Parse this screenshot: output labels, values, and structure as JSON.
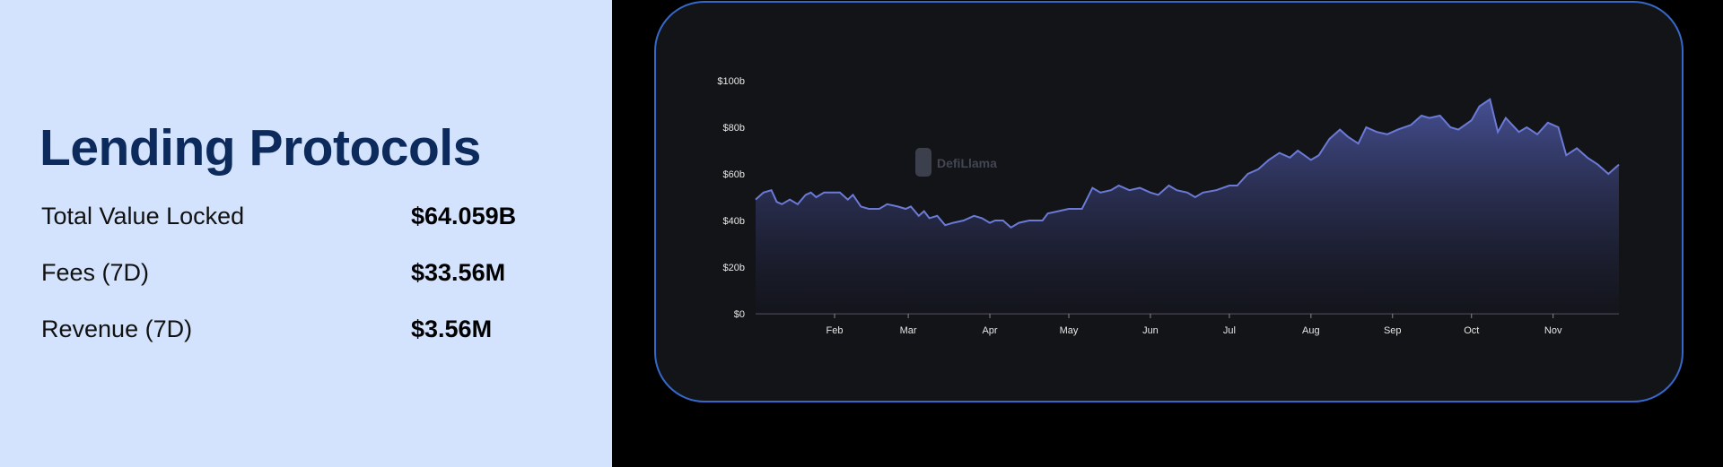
{
  "panel": {
    "title": "Lending Protocols",
    "rows": [
      {
        "label": "Total Value Locked",
        "value": "$64.059B"
      },
      {
        "label": "Fees (7D)",
        "value": "$33.56M"
      },
      {
        "label": "Revenue (7D)",
        "value": "$3.56M"
      }
    ]
  },
  "colors": {
    "panel_bg": "#d3e3fd",
    "title": "#0d2a5c",
    "card_border": "#3569c9",
    "card_bg": "#131417",
    "line": "#6b7ad6"
  },
  "chart_data": {
    "type": "area",
    "title": "",
    "xlabel": "",
    "ylabel": "",
    "watermark": "DefiLlama",
    "ylim": [
      0,
      100
    ],
    "y_ticks": [
      "$0",
      "$20b",
      "$40b",
      "$60b",
      "$80b",
      "$100b"
    ],
    "y_tick_values": [
      0,
      20,
      40,
      60,
      80,
      100
    ],
    "x_ticks": [
      "Feb",
      "Mar",
      "Apr",
      "May",
      "Jun",
      "Jul",
      "Aug",
      "Sep",
      "Oct",
      "Nov"
    ],
    "x_tick_dates": [
      "02-01",
      "03-01",
      "04-01",
      "05-01",
      "06-01",
      "07-01",
      "08-01",
      "09-01",
      "10-01",
      "11-01"
    ],
    "x_range": [
      "01-02",
      "11-26"
    ],
    "grid": false,
    "unit": "billion USD",
    "points": [
      [
        "01-02",
        49
      ],
      [
        "01-05",
        52
      ],
      [
        "01-08",
        53
      ],
      [
        "01-10",
        48
      ],
      [
        "01-12",
        47
      ],
      [
        "01-15",
        49
      ],
      [
        "01-18",
        47
      ],
      [
        "01-21",
        51
      ],
      [
        "01-23",
        52
      ],
      [
        "01-25",
        50
      ],
      [
        "01-28",
        52
      ],
      [
        "02-01",
        52
      ],
      [
        "02-03",
        52
      ],
      [
        "02-06",
        49
      ],
      [
        "02-08",
        51
      ],
      [
        "02-11",
        46
      ],
      [
        "02-14",
        45
      ],
      [
        "02-18",
        45
      ],
      [
        "02-21",
        47
      ],
      [
        "02-25",
        46
      ],
      [
        "02-28",
        45
      ],
      [
        "03-02",
        46
      ],
      [
        "03-05",
        42
      ],
      [
        "03-07",
        44
      ],
      [
        "03-09",
        41
      ],
      [
        "03-12",
        42
      ],
      [
        "03-15",
        38
      ],
      [
        "03-18",
        39
      ],
      [
        "03-22",
        40
      ],
      [
        "03-26",
        42
      ],
      [
        "03-29",
        41
      ],
      [
        "04-01",
        39
      ],
      [
        "04-03",
        40
      ],
      [
        "04-06",
        40
      ],
      [
        "04-09",
        37
      ],
      [
        "04-12",
        39
      ],
      [
        "04-16",
        40
      ],
      [
        "04-21",
        40
      ],
      [
        "04-23",
        43
      ],
      [
        "04-27",
        44
      ],
      [
        "05-01",
        45
      ],
      [
        "05-06",
        45
      ],
      [
        "05-10",
        54
      ],
      [
        "05-13",
        52
      ],
      [
        "05-17",
        53
      ],
      [
        "05-20",
        55
      ],
      [
        "05-24",
        53
      ],
      [
        "05-28",
        54
      ],
      [
        "06-01",
        52
      ],
      [
        "06-04",
        51
      ],
      [
        "06-08",
        55
      ],
      [
        "06-11",
        53
      ],
      [
        "06-15",
        52
      ],
      [
        "06-18",
        50
      ],
      [
        "06-21",
        52
      ],
      [
        "06-26",
        53
      ],
      [
        "07-01",
        55
      ],
      [
        "07-04",
        55
      ],
      [
        "07-08",
        60
      ],
      [
        "07-12",
        62
      ],
      [
        "07-16",
        66
      ],
      [
        "07-20",
        69
      ],
      [
        "07-24",
        67
      ],
      [
        "07-27",
        70
      ],
      [
        "08-01",
        66
      ],
      [
        "08-04",
        68
      ],
      [
        "08-08",
        75
      ],
      [
        "08-12",
        79
      ],
      [
        "08-15",
        76
      ],
      [
        "08-19",
        73
      ],
      [
        "08-22",
        80
      ],
      [
        "08-26",
        78
      ],
      [
        "08-30",
        77
      ],
      [
        "09-03",
        79
      ],
      [
        "09-08",
        81
      ],
      [
        "09-12",
        85
      ],
      [
        "09-15",
        84
      ],
      [
        "09-19",
        85
      ],
      [
        "09-23",
        80
      ],
      [
        "09-26",
        79
      ],
      [
        "10-01",
        83
      ],
      [
        "10-04",
        89
      ],
      [
        "10-08",
        92
      ],
      [
        "10-11",
        78
      ],
      [
        "10-14",
        84
      ],
      [
        "10-19",
        78
      ],
      [
        "10-22",
        80
      ],
      [
        "10-26",
        77
      ],
      [
        "10-30",
        82
      ],
      [
        "11-03",
        80
      ],
      [
        "11-06",
        68
      ],
      [
        "11-10",
        71
      ],
      [
        "11-14",
        67
      ],
      [
        "11-18",
        64
      ],
      [
        "11-22",
        60
      ],
      [
        "11-26",
        64
      ]
    ]
  }
}
